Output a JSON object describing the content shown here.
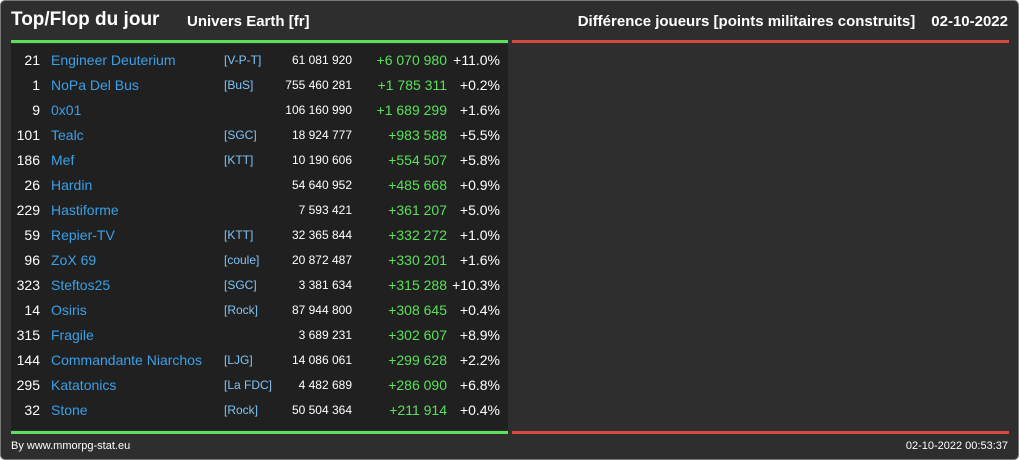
{
  "header": {
    "title": "Top/Flop du jour",
    "universe": "Univers Earth [fr]",
    "metric": "Différence joueurs [points militaires construits]",
    "date": "02-10-2022"
  },
  "colors": {
    "background": "#2e2e2e",
    "panel": "#202020",
    "player_link": "#3aa0e8",
    "alliance_link": "#7fc4f5",
    "positive": "#5ae05a",
    "divider_top": "#5ae05a",
    "divider_flop": "#d9483f"
  },
  "rows": [
    {
      "rank": "21",
      "name": "Engineer Deuterium",
      "alliance": "[V-P-T]",
      "points": "61 081 920",
      "diff": "+6 070 980",
      "pct": "+11.0%"
    },
    {
      "rank": "1",
      "name": "NoPa Del Bus",
      "alliance": "[BuS]",
      "points": "755 460 281",
      "diff": "+1 785 311",
      "pct": "+0.2%"
    },
    {
      "rank": "9",
      "name": "0x01",
      "alliance": "",
      "points": "106 160 990",
      "diff": "+1 689 299",
      "pct": "+1.6%"
    },
    {
      "rank": "101",
      "name": "Tealc",
      "alliance": "[SGC]",
      "points": "18 924 777",
      "diff": "+983 588",
      "pct": "+5.5%"
    },
    {
      "rank": "186",
      "name": "Mef",
      "alliance": "[KTT]",
      "points": "10 190 606",
      "diff": "+554 507",
      "pct": "+5.8%"
    },
    {
      "rank": "26",
      "name": "Hardin",
      "alliance": "",
      "points": "54 640 952",
      "diff": "+485 668",
      "pct": "+0.9%"
    },
    {
      "rank": "229",
      "name": "Hastiforme",
      "alliance": "",
      "points": "7 593 421",
      "diff": "+361 207",
      "pct": "+5.0%"
    },
    {
      "rank": "59",
      "name": "Repier-TV",
      "alliance": "[KTT]",
      "points": "32 365 844",
      "diff": "+332 272",
      "pct": "+1.0%"
    },
    {
      "rank": "96",
      "name": "ZoX 69",
      "alliance": "[coule]",
      "points": "20 872 487",
      "diff": "+330 201",
      "pct": "+1.6%"
    },
    {
      "rank": "323",
      "name": "Steftos25",
      "alliance": "[SGC]",
      "points": "3 381 634",
      "diff": "+315 288",
      "pct": "+10.3%"
    },
    {
      "rank": "14",
      "name": "Osiris",
      "alliance": "[Rock]",
      "points": "87 944 800",
      "diff": "+308 645",
      "pct": "+0.4%"
    },
    {
      "rank": "315",
      "name": "Fragile",
      "alliance": "",
      "points": "3 689 231",
      "diff": "+302 607",
      "pct": "+8.9%"
    },
    {
      "rank": "144",
      "name": "Commandante Niarchos",
      "alliance": "[LJG]",
      "points": "14 086 061",
      "diff": "+299 628",
      "pct": "+2.2%"
    },
    {
      "rank": "295",
      "name": "Katatonics",
      "alliance": "[La FDC]",
      "points": "4 482 689",
      "diff": "+286 090",
      "pct": "+6.8%"
    },
    {
      "rank": "32",
      "name": "Stone",
      "alliance": "[Rock]",
      "points": "50 504 364",
      "diff": "+211 914",
      "pct": "+0.4%"
    }
  ],
  "footer": {
    "credit": "By www.mmorpg-stat.eu",
    "timestamp": "02-10-2022 00:53:37"
  }
}
